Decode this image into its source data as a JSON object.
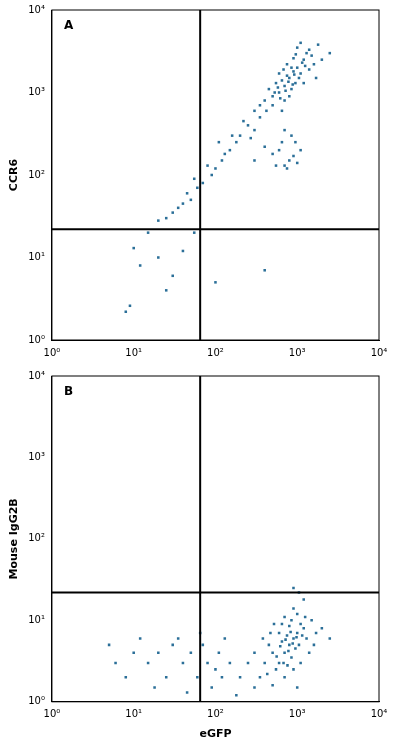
{
  "chart_data": [
    {
      "type": "scatter",
      "annotation": "A",
      "y_label": "CCR6",
      "color": "#2b6f98",
      "marker": "square",
      "log": true,
      "grid": false,
      "xlim": [
        1,
        10000
      ],
      "ylim": [
        1,
        10000
      ],
      "xticks": [
        {
          "value": 1,
          "label": "10⁰"
        },
        {
          "value": 10,
          "label": "10¹"
        },
        {
          "value": 100,
          "label": "10²"
        },
        {
          "value": 1000,
          "label": "10³"
        },
        {
          "value": 10000,
          "label": "10⁴"
        }
      ],
      "yticks": [
        {
          "value": 1,
          "label": "10⁰"
        },
        {
          "value": 10,
          "label": "10¹"
        },
        {
          "value": 100,
          "label": "10²"
        },
        {
          "value": 1000,
          "label": "10³"
        },
        {
          "value": 10000,
          "label": "10⁴"
        }
      ],
      "quadrant_x": 65,
      "quadrant_y": 22,
      "x": [
        800,
        700,
        900,
        600,
        1000,
        1200,
        500,
        650,
        850,
        1100,
        750,
        550,
        950,
        1300,
        1500,
        400,
        450,
        1000,
        1600,
        700,
        350,
        300,
        1800,
        2000,
        1200,
        600,
        900,
        800,
        1400,
        500,
        1100,
        650,
        750,
        850,
        1050,
        580,
        720,
        920,
        1250,
        680,
        2500,
        1700,
        420,
        1400,
        880,
        780,
        620,
        1150,
        960,
        530,
        250,
        200,
        180,
        150,
        300,
        120,
        100,
        90,
        70,
        60,
        50,
        40,
        30,
        25,
        45,
        35,
        130,
        220,
        160,
        80,
        110,
        270,
        350,
        20,
        55,
        800,
        700,
        900,
        600,
        1000,
        750,
        650,
        500,
        850,
        400,
        1100,
        300,
        950,
        550,
        700,
        10,
        12,
        8,
        9,
        20,
        30,
        25,
        40,
        100,
        400,
        55,
        15
      ],
      "values": [
        1500,
        1200,
        1800,
        1000,
        2000,
        2500,
        900,
        1400,
        1100,
        1700,
        2200,
        1300,
        1300,
        3000,
        2800,
        800,
        1100,
        3500,
        2200,
        800,
        700,
        600,
        3800,
        2500,
        1300,
        1700,
        2600,
        900,
        1900,
        700,
        4000,
        600,
        1600,
        2000,
        1500,
        1150,
        1050,
        1650,
        2100,
        1900,
        3000,
        1500,
        600,
        3300,
        1250,
        1350,
        850,
        2300,
        2900,
        1000,
        400,
        300,
        250,
        200,
        350,
        150,
        120,
        100,
        80,
        70,
        50,
        45,
        35,
        30,
        60,
        40,
        180,
        450,
        300,
        130,
        250,
        280,
        500,
        28,
        90,
        150,
        130,
        170,
        200,
        140,
        120,
        250,
        180,
        300,
        220,
        200,
        150,
        250,
        130,
        350,
        13,
        8,
        2.2,
        2.6,
        10,
        6,
        4,
        12,
        5,
        7,
        20,
        20
      ]
    },
    {
      "type": "scatter",
      "annotation": "B",
      "x_label": "eGFP",
      "y_label": "Mouse IgG2B",
      "color": "#2b6f98",
      "marker": "square",
      "log": true,
      "grid": false,
      "xlim": [
        1,
        10000
      ],
      "ylim": [
        1,
        10000
      ],
      "xticks": [
        {
          "value": 1,
          "label": "10⁰"
        },
        {
          "value": 10,
          "label": "10¹"
        },
        {
          "value": 100,
          "label": "10²"
        },
        {
          "value": 1000,
          "label": "10³"
        },
        {
          "value": 10000,
          "label": "10⁴"
        }
      ],
      "yticks": [
        {
          "value": 1,
          "label": "10⁰"
        },
        {
          "value": 10,
          "label": "10¹"
        },
        {
          "value": 100,
          "label": "10²"
        },
        {
          "value": 1000,
          "label": "10³"
        },
        {
          "value": 10000,
          "label": "10⁴"
        }
      ],
      "quadrant_x": 65,
      "quadrant_y": 22,
      "x": [
        800,
        700,
        900,
        600,
        1000,
        500,
        1200,
        650,
        850,
        750,
        400,
        550,
        950,
        1100,
        1300,
        350,
        450,
        1500,
        700,
        900,
        300,
        250,
        1000,
        600,
        800,
        1400,
        1700,
        500,
        1100,
        680,
        780,
        880,
        620,
        720,
        980,
        560,
        830,
        760,
        1050,
        430,
        2000,
        200,
        1250,
        900,
        650,
        1600,
        380,
        470,
        520,
        1150,
        850,
        700,
        1000,
        300,
        2500,
        150,
        120,
        100,
        80,
        60,
        50,
        40,
        30,
        20,
        15,
        10,
        8,
        6,
        5,
        12,
        25,
        35,
        70,
        90,
        110,
        180,
        45,
        18,
        130,
        65,
        900,
        1050,
        1200
      ],
      "values": [
        5,
        4,
        6,
        3,
        7,
        4,
        8,
        5.5,
        3.5,
        6.5,
        3,
        2.5,
        4.5,
        9,
        6,
        2,
        5,
        10,
        2,
        2.5,
        4,
        3,
        12,
        7,
        8.5,
        4,
        7,
        1.6,
        3,
        3,
        4.2,
        5.2,
        4.8,
        5.8,
        6.2,
        3.6,
        7.2,
        2.8,
        5,
        2.2,
        8,
        2,
        11,
        14,
        9,
        5,
        6,
        7,
        9,
        6.5,
        10,
        11,
        1.5,
        1.5,
        6,
        3,
        2,
        2.5,
        3,
        2,
        4,
        3,
        5,
        4,
        3,
        4,
        2,
        3,
        5,
        6,
        2,
        6,
        5,
        1.5,
        4,
        1.2,
        1.3,
        1.5,
        6,
        7,
        25,
        22,
        18
      ]
    }
  ]
}
